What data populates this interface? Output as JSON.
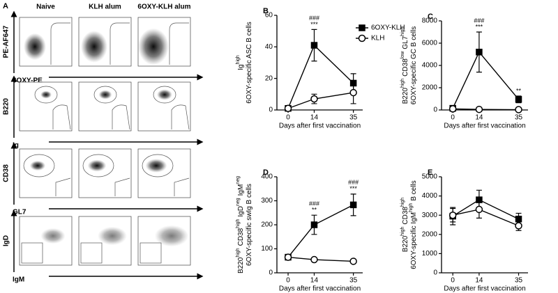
{
  "panel_a": {
    "letter": "A",
    "columns": [
      "Naive",
      "KLH alum",
      "6OXY-KLH alum"
    ],
    "rows": [
      {
        "y_label": "PE-AF647",
        "x_label": "6OXY-PE"
      },
      {
        "y_label": "B220",
        "x_label": "Ig"
      },
      {
        "y_label": "CD38",
        "x_label": "GL7"
      },
      {
        "y_label": "IgD",
        "x_label": "IgM"
      }
    ]
  },
  "chart_data": [
    {
      "type": "line",
      "letter": "B",
      "ylabel": [
        [
          "Ig",
          "high"
        ],
        [
          "6OXY-specific ASC B cells"
        ]
      ],
      "xlabel": "Days after first vaccination",
      "x": [
        0,
        14,
        35
      ],
      "xlim": [
        -6,
        40
      ],
      "xticks": [
        0,
        14,
        35
      ],
      "ylim": [
        0,
        60
      ],
      "yticks": [
        0,
        20,
        40,
        60
      ],
      "legend": "upper right",
      "series": [
        {
          "name": "6OXY-KLH",
          "color": "#000000",
          "marker": "square",
          "filled": true,
          "values": [
            1,
            41,
            17
          ],
          "errors": [
            1,
            10,
            6
          ]
        },
        {
          "name": "KLH",
          "color": "#000000",
          "marker": "circle",
          "filled": false,
          "values": [
            1,
            7,
            11
          ],
          "errors": [
            1,
            3,
            7
          ]
        }
      ],
      "annotations": [
        {
          "x": 14,
          "lines": [
            "###",
            "***"
          ]
        }
      ]
    },
    {
      "type": "line",
      "letter": "C",
      "ylabel": [
        [
          "B220",
          "high",
          "CD38",
          "low",
          "GL7",
          "high"
        ],
        [
          "6OXY-specific GC B cells"
        ]
      ],
      "xlabel": "Days after first vaccination",
      "x": [
        0,
        14,
        35
      ],
      "xlim": [
        -6,
        40
      ],
      "xticks": [
        0,
        14,
        35
      ],
      "ylim": [
        0,
        8000
      ],
      "yticks": [
        0,
        2000,
        4000,
        6000,
        8000
      ],
      "series": [
        {
          "name": "6OXY-KLH",
          "color": "#000000",
          "marker": "square",
          "filled": true,
          "values": [
            150,
            5200,
            950
          ],
          "errors": [
            100,
            1800,
            300
          ]
        },
        {
          "name": "KLH",
          "color": "#000000",
          "marker": "circle",
          "filled": false,
          "values": [
            100,
            50,
            30
          ],
          "errors": [
            50,
            30,
            20
          ]
        }
      ],
      "annotations": [
        {
          "x": 14,
          "lines": [
            "###",
            "***"
          ]
        },
        {
          "x": 35,
          "lines": [
            "**"
          ]
        }
      ]
    },
    {
      "type": "line",
      "letter": "D",
      "ylabel": [
        [
          "B220",
          "high",
          "CD38",
          "high",
          "IgD",
          "neg",
          "IgM",
          "neg"
        ],
        [
          "6OXY-specific swIg B cells"
        ]
      ],
      "xlabel": "Days after first vaccination",
      "x": [
        0,
        14,
        35
      ],
      "xlim": [
        -6,
        40
      ],
      "xticks": [
        0,
        14,
        35
      ],
      "ylim": [
        0,
        400
      ],
      "yticks": [
        0,
        100,
        200,
        300,
        400
      ],
      "series": [
        {
          "name": "6OXY-KLH",
          "color": "#000000",
          "marker": "square",
          "filled": true,
          "values": [
            65,
            200,
            283
          ],
          "errors": [
            10,
            40,
            45
          ]
        },
        {
          "name": "KLH",
          "color": "#000000",
          "marker": "circle",
          "filled": false,
          "values": [
            65,
            55,
            48
          ],
          "errors": [
            5,
            5,
            5
          ]
        }
      ],
      "annotations": [
        {
          "x": 14,
          "lines": [
            "###",
            "**"
          ]
        },
        {
          "x": 35,
          "lines": [
            "###",
            "***"
          ]
        }
      ]
    },
    {
      "type": "line",
      "letter": "E",
      "ylabel": [
        [
          "B220",
          "high",
          "CD38",
          "high"
        ],
        [
          "6OXY-specific IgM",
          "high",
          "B cells"
        ]
      ],
      "xlabel": "Days after first vaccination",
      "x": [
        0,
        14,
        35
      ],
      "xlim": [
        -6,
        40
      ],
      "xticks": [
        0,
        14,
        35
      ],
      "ylim": [
        0,
        5000
      ],
      "yticks": [
        0,
        1000,
        2000,
        3000,
        4000,
        5000
      ],
      "series": [
        {
          "name": "6OXY-KLH",
          "color": "#000000",
          "marker": "square",
          "filled": true,
          "values": [
            2950,
            3800,
            2800
          ],
          "errors": [
            450,
            500,
            300
          ]
        },
        {
          "name": "KLH",
          "color": "#000000",
          "marker": "circle",
          "filled": false,
          "values": [
            3000,
            3300,
            2450
          ],
          "errors": [
            350,
            450,
            250
          ]
        }
      ],
      "annotations": []
    }
  ]
}
